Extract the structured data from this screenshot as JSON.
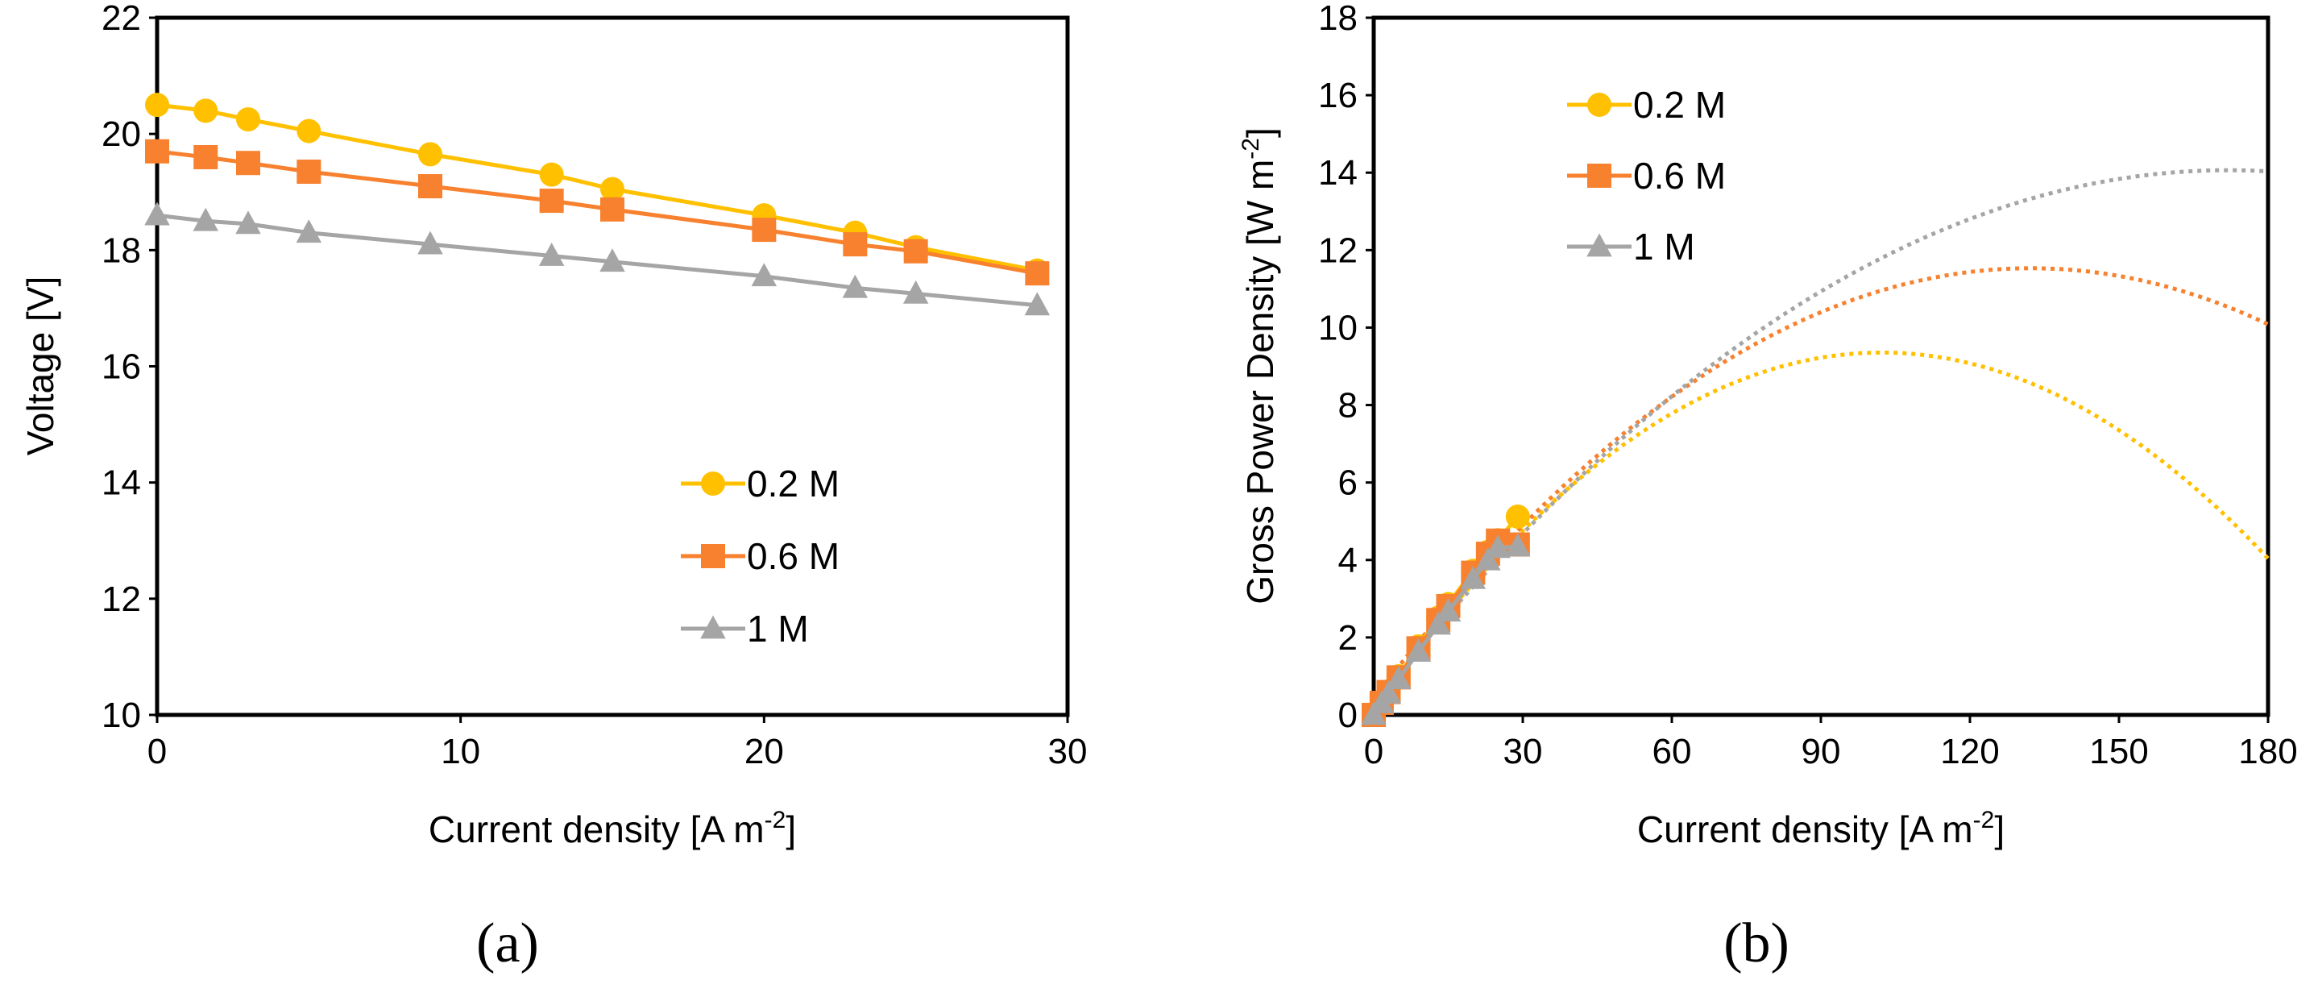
{
  "chart_data": [
    {
      "panel": "(a)",
      "type": "line",
      "xlabel": "Current density [A m",
      "xlabel_sup": "-2",
      "xlabel_end": "]",
      "ylabel": "Voltage [V]",
      "xlim": [
        0,
        30
      ],
      "ylim": [
        10,
        22
      ],
      "xticks": [
        "0",
        "10",
        "20",
        "30"
      ],
      "yticks": [
        "10",
        "12",
        "14",
        "16",
        "18",
        "20",
        "22"
      ],
      "grid": false,
      "legend_position": "lower-right",
      "series": [
        {
          "name": "0.2 M",
          "color": "#FFC000",
          "marker": "circle",
          "x": [
            0,
            1.6,
            3,
            5,
            9,
            13,
            15,
            20,
            23,
            25,
            29
          ],
          "y": [
            20.5,
            20.4,
            20.25,
            20.05,
            19.65,
            19.3,
            19.05,
            18.6,
            18.3,
            18.05,
            17.65
          ]
        },
        {
          "name": "0.6 M",
          "color": "#F7812E",
          "marker": "square",
          "x": [
            0,
            1.6,
            3,
            5,
            9,
            13,
            15,
            20,
            23,
            25,
            29
          ],
          "y": [
            19.7,
            19.6,
            19.5,
            19.35,
            19.1,
            18.85,
            18.7,
            18.35,
            18.1,
            17.98,
            17.6
          ]
        },
        {
          "name": "1 M",
          "color": "#A5A5A5",
          "marker": "triangle",
          "x": [
            0,
            1.6,
            3,
            5,
            9,
            13,
            15,
            20,
            23,
            25,
            29
          ],
          "y": [
            18.6,
            18.5,
            18.45,
            18.3,
            18.1,
            17.9,
            17.8,
            17.55,
            17.35,
            17.25,
            17.05
          ]
        }
      ]
    },
    {
      "panel": "(b)",
      "type": "scatter",
      "xlabel": "Current density [A m",
      "xlabel_sup": "-2",
      "xlabel_end": "]",
      "ylabel": "Gross Power Density [W m",
      "ylabel_sup": "-2",
      "ylabel_end": "]",
      "xlim": [
        0,
        180
      ],
      "ylim": [
        0,
        18
      ],
      "xticks": [
        "0",
        "30",
        "60",
        "90",
        "120",
        "150",
        "180"
      ],
      "yticks": [
        "0",
        "2",
        "4",
        "6",
        "8",
        "10",
        "12",
        "14",
        "16",
        "18"
      ],
      "grid": false,
      "legend_position": "top-left",
      "series": [
        {
          "name": "0.2 M",
          "color": "#FFC000",
          "marker": "circle",
          "x": [
            0,
            1.6,
            3,
            5,
            9,
            13,
            15,
            20,
            23,
            25,
            29
          ],
          "y": [
            0,
            0.33,
            0.61,
            1.0,
            1.77,
            2.51,
            2.86,
            3.72,
            4.21,
            4.51,
            5.12
          ],
          "trend": {
            "style": "dotted",
            "coef": [
              -0.00088,
              0.18,
              0.15
            ]
          }
        },
        {
          "name": "0.6 M",
          "color": "#F7812E",
          "marker": "square",
          "x": [
            0,
            1.6,
            3,
            5,
            9,
            13,
            15,
            20,
            23,
            25,
            29
          ],
          "y": [
            0,
            0.31,
            0.59,
            0.97,
            1.72,
            2.45,
            2.81,
            3.67,
            4.16,
            4.5,
            4.4
          ],
          "trend": {
            "style": "dotted",
            "coef": [
              -0.000635,
              0.168,
              0.42
            ]
          }
        },
        {
          "name": "1 M",
          "color": "#A5A5A5",
          "marker": "triangle",
          "x": [
            0,
            1.6,
            3,
            5,
            9,
            13,
            15,
            20,
            23,
            25,
            29
          ],
          "y": [
            0,
            0.3,
            0.55,
            0.92,
            1.63,
            2.33,
            2.67,
            3.51,
            3.99,
            4.31,
            4.35
          ],
          "trend": {
            "style": "dotted",
            "coef": [
              -0.000465,
              0.16,
              0.3
            ]
          }
        }
      ]
    }
  ]
}
